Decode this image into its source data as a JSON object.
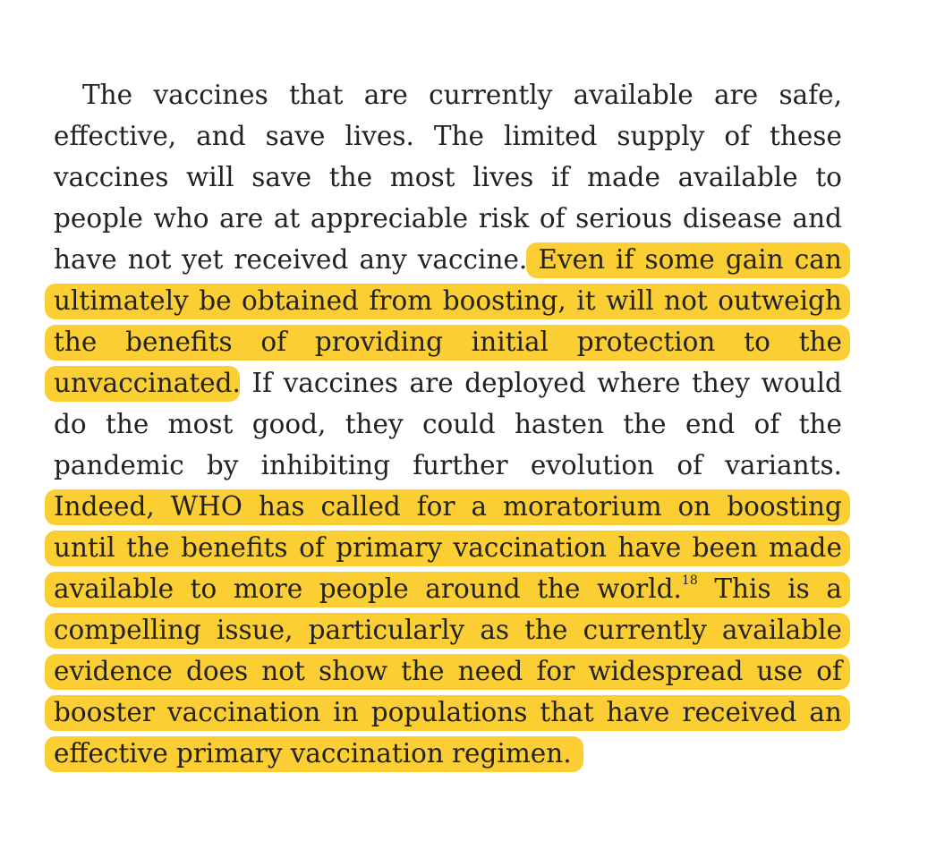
{
  "paragraph": {
    "lines": [
      "The vaccines that are currently available are safe,",
      "effective, and save lives. The limited supply of these",
      "vaccines will save the most lives if made available to",
      "people who are at appreciable risk of serious disease and",
      "have not yet received any vaccine. Even if some gain can",
      "ultimately be obtained from boosting, it will not outweigh",
      "the benefits of providing initial protection to the",
      "unvaccinated. If vaccines are deployed where they would",
      "do the most good, they could hasten the end of the",
      "pandemic by inhibiting further evolution of variants.",
      "Indeed, WHO has called for a moratorium on boosting",
      "until the benefits of primary vaccination have been made",
      "available to more people around the world.18 This is a",
      "compelling issue, particularly as the currently available",
      "evidence does not show the need for widespread use of",
      "booster vaccination in populations that have received an",
      "effective primary vaccination regimen."
    ],
    "footnote_ref": "18"
  },
  "highlight_color": "#fbcf33",
  "text_color": "#222222"
}
